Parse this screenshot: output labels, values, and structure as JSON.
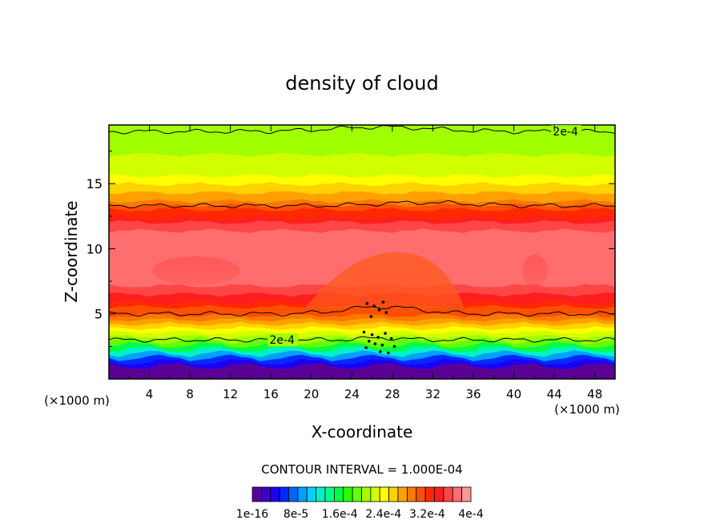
{
  "chart_data": {
    "type": "contour",
    "title": "density of cloud",
    "xlabel": "X-coordinate",
    "ylabel": "Z-coordinate",
    "x_unit": "(×1000 m)",
    "z_unit": "(×1000 m)",
    "xlim": [
      0,
      50
    ],
    "ylim": [
      0,
      19.5
    ],
    "x_ticks": [
      "4",
      "8",
      "12",
      "16",
      "20",
      "24",
      "28",
      "32",
      "36",
      "40",
      "44",
      "48"
    ],
    "y_ticks": [
      "5",
      "10",
      "15"
    ],
    "contour_interval_text": "CONTOUR INTERVAL = 1.000E-04",
    "contour_label": "2e-4",
    "colorbar_labels": [
      "1e-16",
      "8e-5",
      "1.6e-4",
      "2.4e-4",
      "3.2e-4",
      "4e-4"
    ],
    "colorbar_colors": [
      "#5a0097",
      "#3c00c8",
      "#1e00f0",
      "#0028ff",
      "#0064ff",
      "#00a0ff",
      "#00d2ff",
      "#00f0c8",
      "#00ff8c",
      "#00ff46",
      "#28ff00",
      "#64ff00",
      "#a0ff00",
      "#d2ff00",
      "#ffff00",
      "#ffd200",
      "#ffa000",
      "#ff7800",
      "#ff5000",
      "#ff2800",
      "#ff1e1e",
      "#ff4646",
      "#ff6e6e",
      "#ff9696"
    ],
    "vertical_profile": [
      {
        "z": 0.4,
        "density": 1e-08
      },
      {
        "z": 0.9,
        "density": 1e-05
      },
      {
        "z": 1.4,
        "density": 6e-05
      },
      {
        "z": 1.9,
        "density": 0.00011
      },
      {
        "z": 2.4,
        "density": 0.00016
      },
      {
        "z": 3.0,
        "density": 0.0002
      },
      {
        "z": 4.0,
        "density": 0.00026
      },
      {
        "z": 5.0,
        "density": 0.0003
      },
      {
        "z": 6.0,
        "density": 0.00034
      },
      {
        "z": 7.0,
        "density": 0.000365
      },
      {
        "z": 8.5,
        "density": 0.00038
      },
      {
        "z": 10.0,
        "density": 0.00038
      },
      {
        "z": 11.5,
        "density": 0.000365
      },
      {
        "z": 12.5,
        "density": 0.00033
      },
      {
        "z": 13.3,
        "density": 0.0003
      },
      {
        "z": 14.2,
        "density": 0.00027
      },
      {
        "z": 15.2,
        "density": 0.00024
      },
      {
        "z": 16.2,
        "density": 0.000225
      },
      {
        "z": 17.3,
        "density": 0.000215
      },
      {
        "z": 18.5,
        "density": 0.000205
      },
      {
        "z": 19.5,
        "density": 0.0002
      }
    ],
    "contour_lines": [
      {
        "level": 0.0002,
        "z_approx": 3.0,
        "labeled": true,
        "label_x": 16
      },
      {
        "level": 0.0003,
        "z_approx": 5.0,
        "labeled": false
      },
      {
        "level": 0.0003,
        "z_approx": 13.3,
        "labeled": false
      },
      {
        "level": 0.0002,
        "z_approx": 19.0,
        "labeled": true,
        "label_x": 44
      }
    ]
  }
}
